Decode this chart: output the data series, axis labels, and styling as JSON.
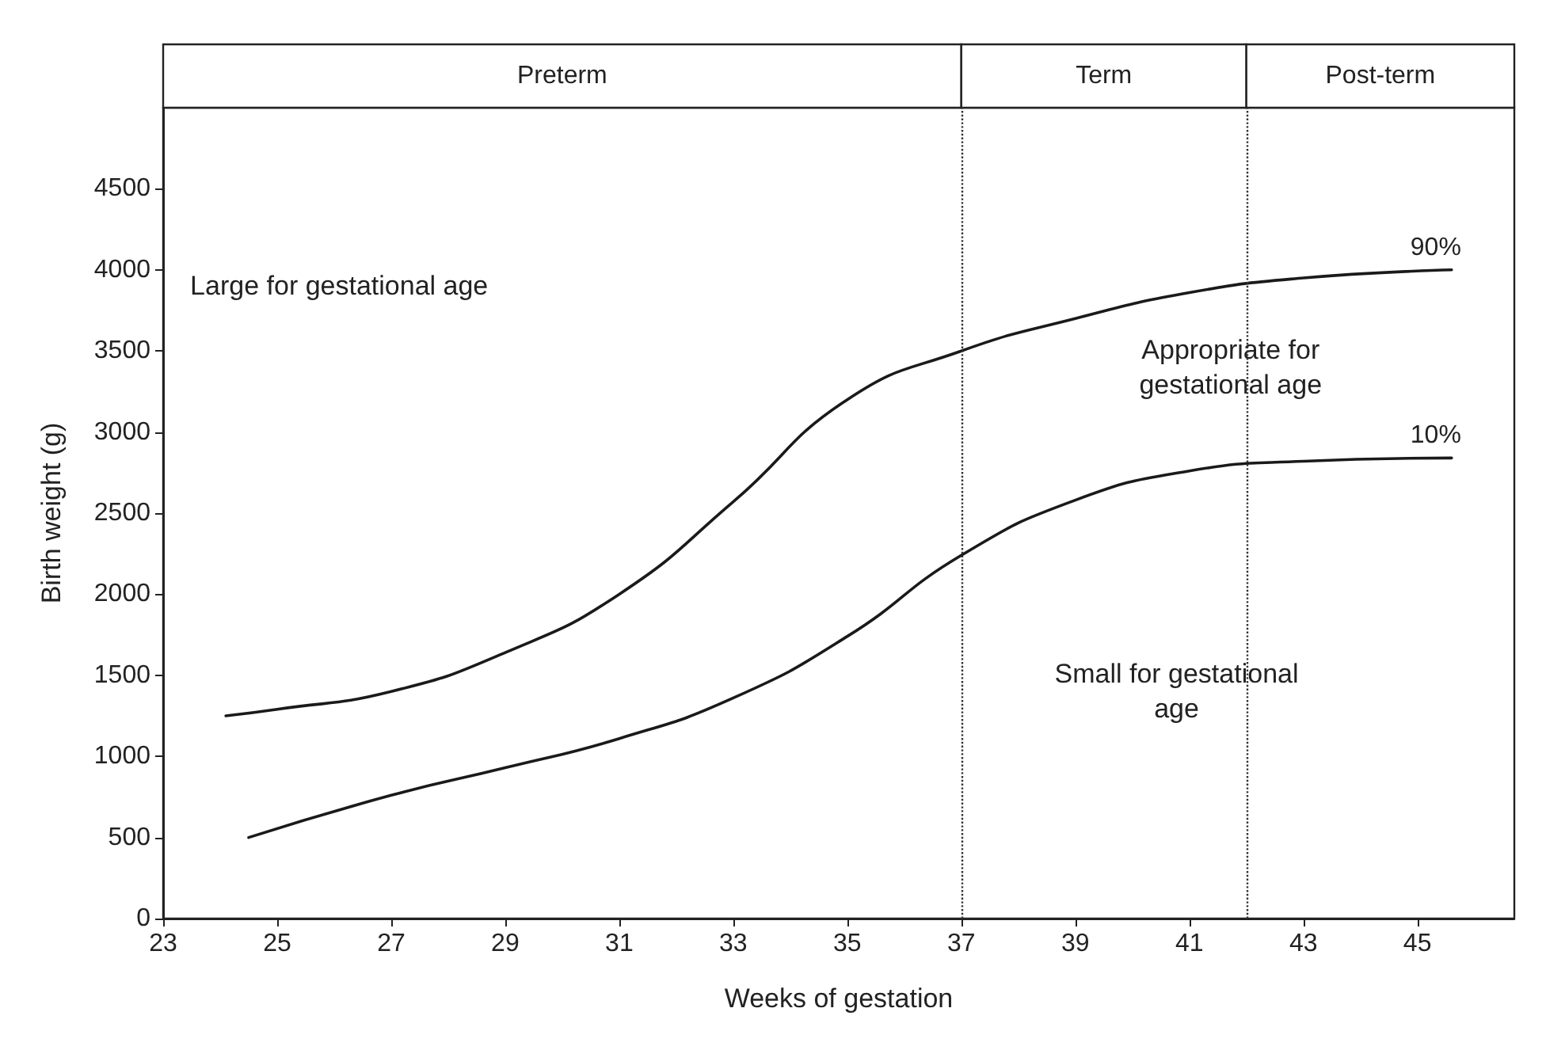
{
  "chart_data": {
    "type": "line",
    "xlabel": "Weeks of gestation",
    "ylabel": "Birth weight (g)",
    "xlim": [
      23,
      46.7
    ],
    "xticks": [
      23,
      25,
      27,
      29,
      31,
      33,
      35,
      37,
      39,
      41,
      43,
      45
    ],
    "ylim": [
      0,
      5000
    ],
    "yticks": [
      0,
      500,
      1000,
      1500,
      2000,
      2500,
      3000,
      3500,
      4000,
      4500
    ],
    "grid": false,
    "legend": false,
    "marker": "none",
    "line_style": "solid",
    "series": [
      {
        "name": "90%",
        "color": "#1a1a1a",
        "x": [
          24.1,
          25,
          27,
          29,
          31,
          33,
          35,
          37,
          39,
          41,
          43,
          45.6
        ],
        "values": [
          1250,
          1290,
          1400,
          1640,
          2000,
          2570,
          3200,
          3500,
          3700,
          3860,
          3950,
          4000
        ]
      },
      {
        "name": "10%",
        "color": "#1a1a1a",
        "x": [
          24.5,
          27,
          29,
          31,
          33,
          35,
          37,
          39,
          41,
          43,
          45.6
        ],
        "values": [
          500,
          760,
          930,
          1110,
          1360,
          1740,
          2240,
          2580,
          2760,
          2820,
          2840
        ]
      }
    ],
    "ref_lines": [
      {
        "axis": "x",
        "value": 37,
        "line_style": "dotted",
        "color": "#333333"
      },
      {
        "axis": "x",
        "value": 42,
        "line_style": "dotted",
        "color": "#333333"
      }
    ],
    "annotations": [
      "Preterm",
      "Term",
      "Post-term",
      "Large for gestational age",
      "Appropriate for\ngestational age",
      "Small for gestational\nage"
    ]
  }
}
